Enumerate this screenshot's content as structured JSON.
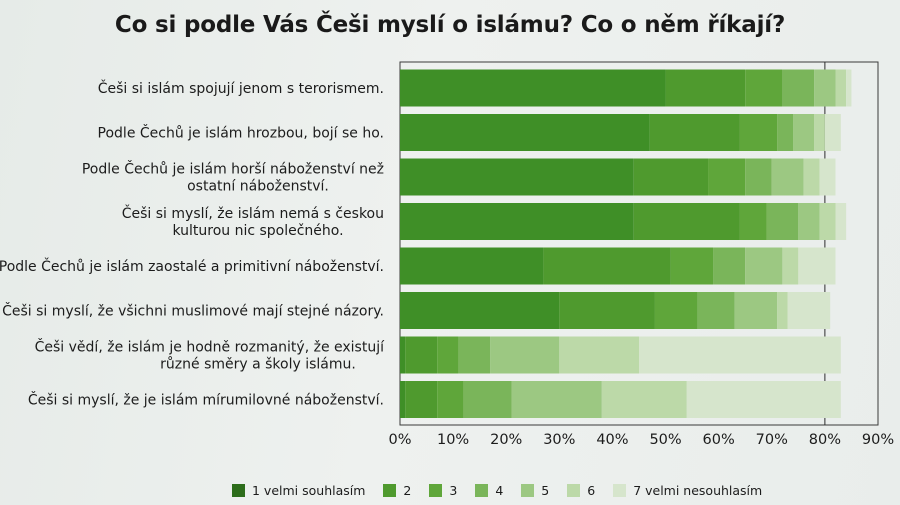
{
  "title": "Co si podle Vás Češi myslí o islámu? Co o něm říkají?",
  "chart_data": {
    "type": "bar",
    "orientation": "horizontal",
    "stacked": true,
    "categories": [
      [
        "Češi si islám spojují jenom s terorismem."
      ],
      [
        "Podle Čechů je islám hrozbou, bojí se ho."
      ],
      [
        "Podle Čechů je islám horší náboženství než",
        "ostatní náboženství."
      ],
      [
        "Češi si myslí, že islám nemá s českou",
        "kulturou nic společného."
      ],
      [
        "Podle Čechů je islám zaostalé a primitivní náboženství."
      ],
      [
        "Češi si myslí, že všichni muslimové mají stejné názory."
      ],
      [
        "Češi vědí, že islám je hodně rozmanitý, že existují",
        "různé směry a školy islámu."
      ],
      [
        "Češi si myslí, že je islám mírumilovné náboženství."
      ]
    ],
    "series": [
      {
        "name": "1 velmi souhlasím",
        "color": "#3f8f27",
        "values": [
          50,
          47,
          44,
          44,
          27,
          30,
          1,
          1
        ]
      },
      {
        "name": "2",
        "color": "#4f9a2e",
        "values": [
          15,
          17,
          14,
          20,
          24,
          18,
          6,
          6
        ]
      },
      {
        "name": "3",
        "color": "#5fa63a",
        "values": [
          7,
          7,
          7,
          5,
          8,
          8,
          4,
          5
        ]
      },
      {
        "name": "4",
        "color": "#7ab55a",
        "values": [
          6,
          3,
          5,
          6,
          6,
          7,
          6,
          9
        ]
      },
      {
        "name": "5",
        "color": "#9cc882",
        "values": [
          4,
          4,
          6,
          4,
          7,
          8,
          13,
          17
        ]
      },
      {
        "name": "6",
        "color": "#bcd9a8",
        "values": [
          2,
          2,
          3,
          3,
          3,
          2,
          15,
          16
        ]
      },
      {
        "name": "7 velmi nesouhlasím",
        "color": "#d6e5cc",
        "values": [
          1,
          3,
          3,
          2,
          7,
          8,
          38,
          29
        ]
      }
    ],
    "x_ticks": [
      "0%",
      "10%",
      "20%",
      "30%",
      "40%",
      "50%",
      "60%",
      "70%",
      "80%",
      "90%"
    ],
    "xlim": [
      0,
      90
    ],
    "grid": false,
    "legend_position": "bottom"
  }
}
